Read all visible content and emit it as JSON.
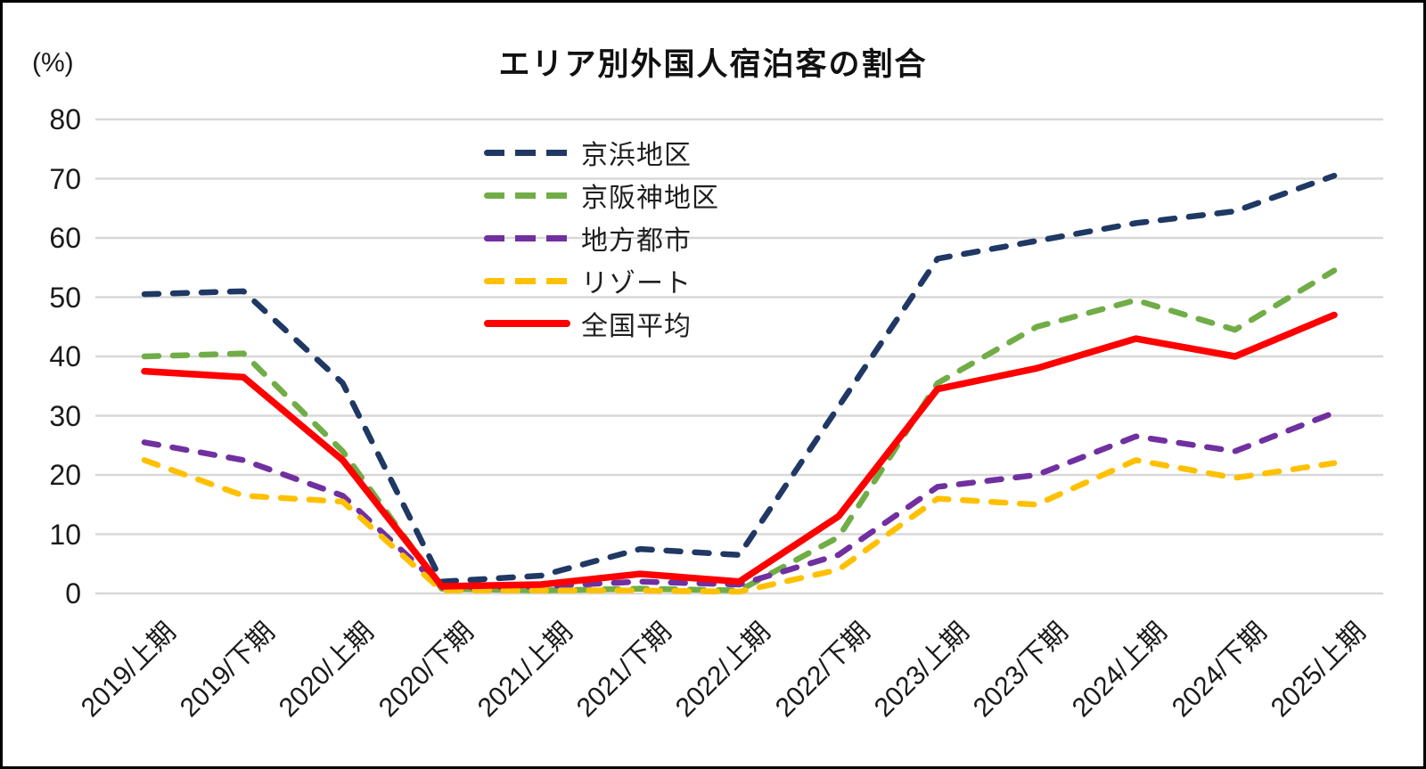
{
  "title": "エリア別外国人宿泊客の割合",
  "y_axis_unit": "(%)",
  "chart_data": {
    "type": "line",
    "title": "エリア別外国人宿泊客の割合",
    "ylabel": "(%)",
    "ylim": [
      0,
      80
    ],
    "yticks": [
      0,
      10,
      20,
      30,
      40,
      50,
      60,
      70,
      80
    ],
    "grid": "horizontal-only",
    "legend_position": "upper-left-of-center, vertical stack",
    "categories": [
      "2019/上期",
      "2019/下期",
      "2020/上期",
      "2020/下期",
      "2021/上期",
      "2021/下期",
      "2022/上期",
      "2022/下期",
      "2023/上期",
      "2023/下期",
      "2024/上期",
      "2024/下期",
      "2025/上期"
    ],
    "series": [
      {
        "name": "京浜地区",
        "color": "#1f3864",
        "style": "dashed",
        "values": [
          50.5,
          51,
          35.5,
          2,
          3,
          7.5,
          6.5,
          31.5,
          56.5,
          59.5,
          62.5,
          64.5,
          70.5
        ]
      },
      {
        "name": "京阪神地区",
        "color": "#70ad47",
        "style": "dashed",
        "values": [
          40,
          40.5,
          24,
          0.8,
          0.5,
          0.8,
          0.5,
          9.5,
          35.5,
          45,
          49.5,
          44.5,
          54.5
        ]
      },
      {
        "name": "地方都市",
        "color": "#7030a0",
        "style": "dashed",
        "values": [
          25.5,
          22.5,
          16.5,
          1,
          1.2,
          2,
          1.5,
          6.5,
          18,
          20,
          26.5,
          24,
          30.5
        ]
      },
      {
        "name": "リゾート",
        "color": "#ffc000",
        "style": "dashed",
        "values": [
          22.5,
          16.5,
          15.5,
          0.5,
          0.5,
          0.5,
          0.3,
          4,
          16,
          15,
          22.5,
          19.5,
          22
        ]
      },
      {
        "name": "全国平均",
        "color": "#fe0000",
        "style": "solid",
        "values": [
          37.5,
          36.5,
          22.5,
          1.2,
          1.5,
          3.3,
          2,
          13,
          34.5,
          38,
          43,
          40,
          47
        ]
      }
    ],
    "gridline_color": "#d8d8d8"
  }
}
